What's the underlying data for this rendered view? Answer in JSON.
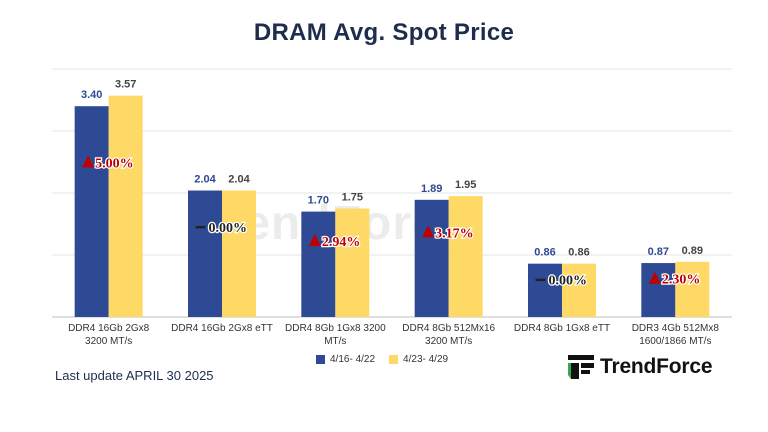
{
  "chart_data": {
    "type": "bar",
    "title": "DRAM Avg. Spot Price",
    "categories": [
      [
        "DDR4 16Gb 2Gx8",
        "3200 MT/s"
      ],
      [
        "DDR4 16Gb 2Gx8 eTT"
      ],
      [
        "DDR4 8Gb 1Gx8 3200",
        "MT/s"
      ],
      [
        "DDR4 8Gb 512Mx16",
        "3200 MT/s"
      ],
      [
        "DDR4 8Gb 1Gx8 eTT"
      ],
      [
        "DDR3 4Gb 512Mx8",
        "1600/1866  MT/s"
      ]
    ],
    "series": [
      {
        "name": "4/16- 4/22",
        "color": "#2e4a94",
        "values": [
          3.4,
          2.04,
          1.7,
          1.89,
          0.86,
          0.87
        ],
        "labels": [
          "3.40",
          "2.04",
          "1.70",
          "1.89",
          "0.86",
          "0.87"
        ]
      },
      {
        "name": "4/23- 4/29",
        "color": "#ffd966",
        "values": [
          3.57,
          2.04,
          1.75,
          1.95,
          0.86,
          0.89
        ],
        "labels": [
          "3.57",
          "2.04",
          "1.75",
          "1.95",
          "0.86",
          "0.89"
        ]
      }
    ],
    "changes": [
      {
        "text": "5.00%",
        "direction": "up"
      },
      {
        "text": "0.00%",
        "direction": "flat"
      },
      {
        "text": "2.94%",
        "direction": "up"
      },
      {
        "text": "3.17%",
        "direction": "up"
      },
      {
        "text": "0.00%",
        "direction": "flat"
      },
      {
        "text": "2.30%",
        "direction": "up"
      }
    ],
    "ylim": [
      0,
      4.0
    ],
    "grid": true,
    "legend": "bottom-center",
    "xlabel": "",
    "ylabel": ""
  },
  "footer": {
    "last_update": "Last update APRIL 30  2025",
    "brand": "TrendForce",
    "watermark": "TrendForce"
  },
  "colors": {
    "title": "#1f2d4d",
    "change_up": "#c00000",
    "change_flat": "#222222"
  }
}
